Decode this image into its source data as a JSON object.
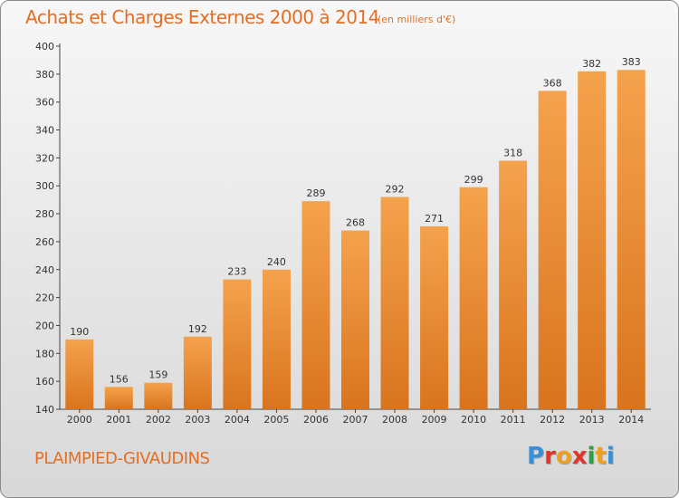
{
  "header": {
    "title": "Achats et Charges Externes 2000 à 2014",
    "unit": "(en milliers d'€)"
  },
  "footer": {
    "commune": "PLAIMPIED-GIVAUDINS",
    "logo": "Proxiti",
    "logo_colors": [
      "#3a8fd9",
      "#e2342d",
      "#f0a020",
      "#e2342d",
      "#2f9e44",
      "#f0a020",
      "#3a8fd9"
    ]
  },
  "colors": {
    "accent": "#e36f24",
    "bar_light": "#f5a24d",
    "bar_dark": "#d9741e"
  },
  "chart_data": {
    "type": "bar",
    "title": "Achats et Charges Externes 2000 à 2014",
    "subtitle": "(en milliers d'€)",
    "xlabel": "",
    "ylabel": "",
    "categories": [
      "2000",
      "2001",
      "2002",
      "2003",
      "2004",
      "2005",
      "2006",
      "2007",
      "2008",
      "2009",
      "2010",
      "2011",
      "2012",
      "2013",
      "2014"
    ],
    "values": [
      190,
      156,
      159,
      192,
      233,
      240,
      289,
      268,
      292,
      271,
      299,
      318,
      368,
      382,
      383
    ],
    "ylim": [
      140,
      400
    ],
    "yticks": [
      140,
      160,
      180,
      200,
      220,
      240,
      260,
      280,
      300,
      320,
      340,
      360,
      380,
      400
    ],
    "grid": false,
    "data_labels": true
  }
}
